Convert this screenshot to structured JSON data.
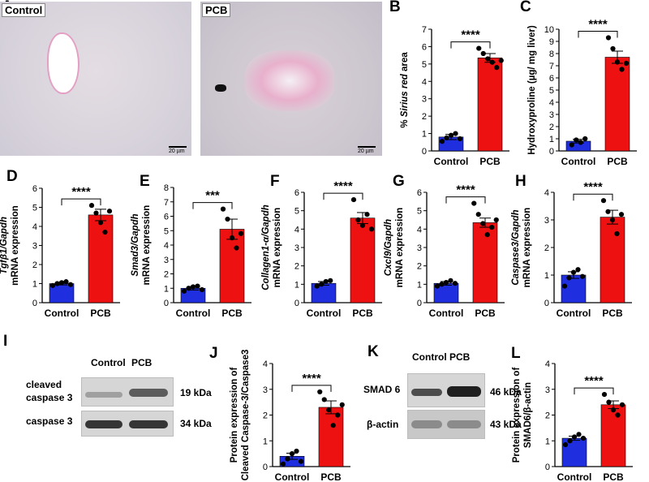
{
  "panels": {
    "A": {
      "letter": "A",
      "left_tag": "Control",
      "right_tag": "PCB",
      "scale_left": "20 µm",
      "scale_right": "20 µm"
    },
    "I": {
      "letter": "I",
      "columns": [
        "Control",
        "PCB"
      ],
      "rows": [
        "cleaved\ncaspase 3",
        "caspase 3"
      ],
      "sizes": [
        "19 kDa",
        "34 kDa"
      ]
    },
    "K": {
      "letter": "K",
      "columns": [
        "Control",
        "PCB"
      ],
      "rows": [
        "SMAD 6",
        "β-actin"
      ],
      "sizes": [
        "46 kDa",
        "43 kDa"
      ]
    }
  },
  "colors": {
    "control": "#1f2fe0",
    "pcb": "#ee1111"
  },
  "chart_data": [
    {
      "id": "B",
      "type": "bar",
      "categories": [
        "Control",
        "PCB"
      ],
      "ylabel_parts": [
        {
          "t": "% "
        },
        {
          "t": "Sirius red",
          "i": true
        },
        {
          "t": " area"
        }
      ],
      "ylim": [
        0,
        7
      ],
      "yticks": [
        0,
        1,
        2,
        3,
        4,
        5,
        6,
        7
      ],
      "values": [
        0.8,
        5.35
      ],
      "errors": [
        0.15,
        0.25
      ],
      "points": [
        [
          0.55,
          0.75,
          0.9,
          1.0,
          0.7
        ],
        [
          5.9,
          5.6,
          5.3,
          5.1,
          4.8,
          5.2
        ]
      ],
      "significance": "****"
    },
    {
      "id": "C",
      "type": "bar",
      "categories": [
        "Control",
        "PCB"
      ],
      "ylabel_parts": [
        {
          "t": "Hydroxyproline (µg/ mg liver)"
        }
      ],
      "ylim": [
        0,
        10
      ],
      "yticks": [
        0,
        1,
        2,
        3,
        4,
        5,
        6,
        7,
        8,
        9,
        10
      ],
      "values": [
        0.8,
        7.7
      ],
      "errors": [
        0.15,
        0.5
      ],
      "points": [
        [
          0.5,
          0.9,
          0.7,
          1.0
        ],
        [
          9.3,
          8.4,
          7.3,
          6.7,
          7.2
        ]
      ],
      "significance": "****"
    },
    {
      "id": "D",
      "type": "bar",
      "categories": [
        "Control",
        "PCB"
      ],
      "ylabel_parts": [
        {
          "t": "Tgfβ1/Gapdh",
          "i": true
        },
        {
          "t": "mRNA expression",
          "br": true
        }
      ],
      "ylim": [
        0,
        6
      ],
      "yticks": [
        0,
        1,
        2,
        3,
        4,
        5,
        6
      ],
      "values": [
        1.0,
        4.6
      ],
      "errors": [
        0.07,
        0.3
      ],
      "points": [
        [
          0.9,
          1.0,
          1.05,
          1.1,
          0.95
        ],
        [
          5.1,
          4.7,
          4.2,
          3.7,
          4.8
        ]
      ],
      "significance": "****"
    },
    {
      "id": "E",
      "type": "bar",
      "categories": [
        "Control",
        "PCB"
      ],
      "ylabel_parts": [
        {
          "t": "Smad3/Gapdh",
          "i": true
        },
        {
          "t": "mRNA expression",
          "br": true
        }
      ],
      "ylim": [
        0,
        8
      ],
      "yticks": [
        0,
        1,
        2,
        3,
        4,
        5,
        6,
        7,
        8
      ],
      "values": [
        1.0,
        5.1
      ],
      "errors": [
        0.12,
        0.7
      ],
      "points": [
        [
          0.8,
          1.0,
          1.1,
          1.15,
          0.9
        ],
        [
          6.5,
          5.8,
          4.5,
          3.8,
          4.8
        ]
      ],
      "significance": "***"
    },
    {
      "id": "F",
      "type": "bar",
      "categories": [
        "Control",
        "PCB"
      ],
      "ylabel_parts": [
        {
          "t": "Collagen1-α/Gapdh",
          "i": true
        },
        {
          "t": "mRNA expression",
          "br": true
        }
      ],
      "ylim": [
        0,
        6
      ],
      "yticks": [
        0,
        1,
        2,
        3,
        4,
        5,
        6
      ],
      "values": [
        1.05,
        4.6
      ],
      "errors": [
        0.1,
        0.3
      ],
      "points": [
        [
          0.9,
          1.0,
          1.15,
          1.2
        ],
        [
          5.6,
          4.5,
          4.2,
          4.8,
          4.0
        ]
      ],
      "significance": "****"
    },
    {
      "id": "G",
      "type": "bar",
      "categories": [
        "Control",
        "PCB"
      ],
      "ylabel_parts": [
        {
          "t": "Cxcl9/Gapdh",
          "i": true
        },
        {
          "t": "mRNA expression",
          "br": true
        }
      ],
      "ylim": [
        0,
        6
      ],
      "yticks": [
        0,
        1,
        2,
        3,
        4,
        5,
        6
      ],
      "values": [
        1.05,
        4.35
      ],
      "errors": [
        0.1,
        0.25
      ],
      "points": [
        [
          0.9,
          1.0,
          1.1,
          1.2,
          1.05
        ],
        [
          5.4,
          4.8,
          4.3,
          3.7,
          4.1,
          4.5
        ]
      ],
      "significance": "****"
    },
    {
      "id": "H",
      "type": "bar",
      "categories": [
        "Control",
        "PCB"
      ],
      "ylabel_parts": [
        {
          "t": "Caspase3/Gapdh",
          "i": true
        },
        {
          "t": "mRNA expression",
          "br": true
        }
      ],
      "ylim": [
        0,
        4
      ],
      "yticks": [
        0,
        1,
        2,
        3,
        4
      ],
      "values": [
        1.0,
        3.1
      ],
      "errors": [
        0.12,
        0.25
      ],
      "points": [
        [
          0.6,
          0.9,
          1.1,
          1.2,
          0.95
        ],
        [
          3.7,
          3.3,
          3.0,
          2.5,
          3.2
        ]
      ],
      "significance": "****"
    },
    {
      "id": "J",
      "type": "bar",
      "categories": [
        "Control",
        "PCB"
      ],
      "ylabel_parts": [
        {
          "t": "Protein expression of"
        },
        {
          "t": "Cleaved Caspase-3/Caspase3",
          "br": true
        }
      ],
      "ylim": [
        0,
        4
      ],
      "yticks": [
        0,
        1,
        2,
        3,
        4
      ],
      "values": [
        0.4,
        2.3
      ],
      "errors": [
        0.12,
        0.25
      ],
      "points": [
        [
          0.1,
          0.3,
          0.5,
          0.6,
          0.2
        ],
        [
          2.9,
          2.6,
          2.2,
          1.6,
          2.0,
          2.4
        ]
      ],
      "significance": "****"
    },
    {
      "id": "L",
      "type": "bar",
      "categories": [
        "Control",
        "PCB"
      ],
      "ylabel_parts": [
        {
          "t": "Protein expression of"
        },
        {
          "t": "SMAD6/β-actin",
          "br": true
        }
      ],
      "ylim": [
        0,
        4
      ],
      "yticks": [
        0,
        1,
        2,
        3,
        4
      ],
      "values": [
        1.1,
        2.4
      ],
      "errors": [
        0.08,
        0.15
      ],
      "points": [
        [
          0.85,
          1.0,
          1.15,
          1.25,
          1.1
        ],
        [
          2.8,
          2.5,
          2.2,
          2.0,
          2.4
        ]
      ],
      "significance": "****"
    }
  ]
}
